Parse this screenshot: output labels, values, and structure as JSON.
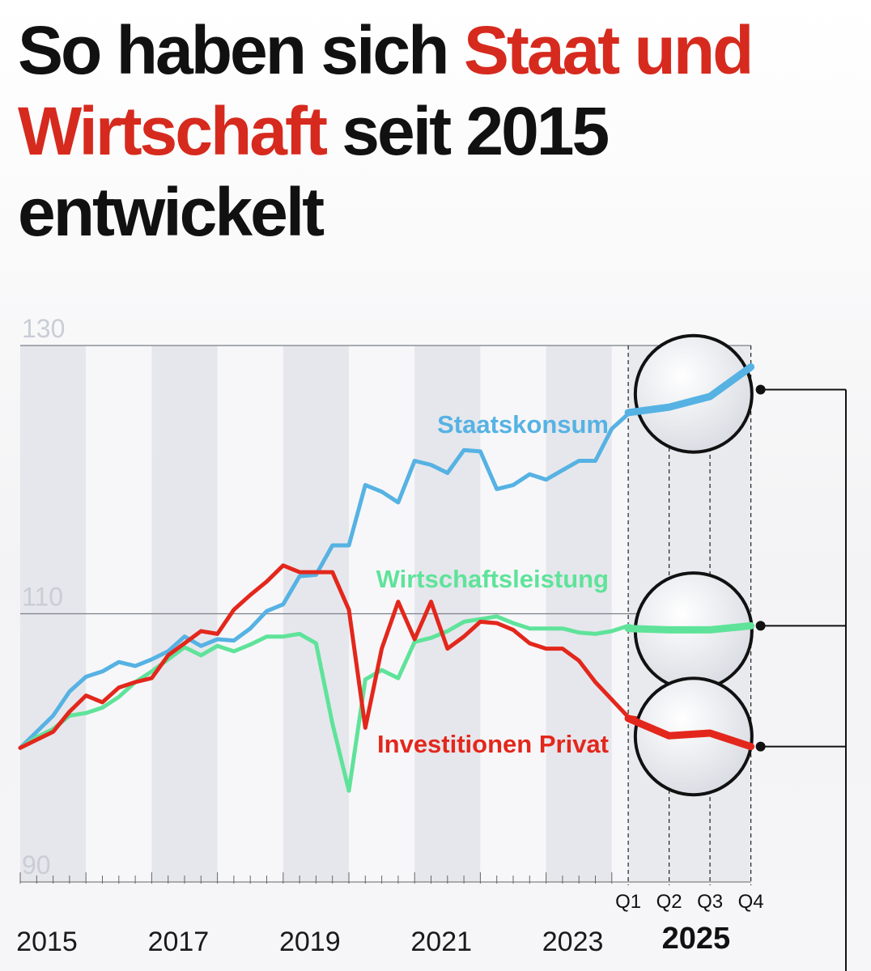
{
  "title": {
    "part1": "So haben sich ",
    "part2": "Staat und Wirtschaft",
    "part3": " seit 2015 entwickelt"
  },
  "colors": {
    "staat": "#56b2e3",
    "wirtschaft": "#5fe39a",
    "invest": "#e3271c",
    "title_accent": "#d62a1e"
  },
  "chart_data": {
    "type": "line",
    "title": "So haben sich Staat und Wirtschaft seit 2015 entwickelt",
    "xlabel": "",
    "ylabel": "",
    "ylim": [
      90,
      130
    ],
    "yticks": [
      130,
      110,
      90
    ],
    "x_quarters": 41,
    "year_labels": [
      {
        "q": 0,
        "label": "2015"
      },
      {
        "q": 8,
        "label": "2017"
      },
      {
        "q": 16,
        "label": "2019"
      },
      {
        "q": 24,
        "label": "2021"
      },
      {
        "q": 32,
        "label": "2023"
      }
    ],
    "highlight": {
      "year": "2025",
      "quarters": [
        "Q1",
        "Q2",
        "Q3",
        "Q4"
      ],
      "start_q": 37
    },
    "series": [
      {
        "name": "Staatskonsum",
        "color_key": "staat",
        "values": [
          100,
          101.2,
          102.4,
          104.2,
          105.3,
          105.7,
          106.4,
          106.1,
          106.6,
          107.2,
          108.3,
          107.6,
          108.1,
          108,
          108.9,
          110.2,
          110.7,
          112.8,
          112.9,
          115.1,
          115.1,
          119.6,
          119.1,
          118.3,
          121.4,
          121.1,
          120.5,
          122.2,
          122.1,
          119.3,
          119.6,
          120.4,
          120,
          120.7,
          121.4,
          121.4,
          123.8,
          124.9,
          125.6,
          124.5,
          125
        ],
        "highlight_values": [
          125,
          125.4,
          126.2,
          128.4
        ]
      },
      {
        "name": "Wirtschaftsleistung",
        "color_key": "wirtschaft",
        "values": [
          100,
          100.8,
          101.4,
          102.4,
          102.6,
          103,
          103.8,
          104.9,
          105.7,
          106.6,
          107.5,
          106.9,
          107.6,
          107.2,
          107.7,
          108.3,
          108.3,
          108.5,
          107.8,
          101.8,
          96.8,
          105.1,
          105.8,
          105.2,
          107.9,
          108.2,
          108.7,
          109.4,
          109.6,
          109.8,
          109.3,
          108.9,
          108.9,
          108.9,
          108.6,
          108.5,
          108.7,
          109.1,
          108.8,
          109,
          108.9
        ],
        "highlight_values": [
          108.9,
          108.8,
          108.8,
          109.1
        ]
      },
      {
        "name": "Investitionen Privat",
        "color_key": "invest",
        "values": [
          100,
          100.6,
          101.2,
          102.7,
          103.9,
          103.4,
          104.5,
          104.9,
          105.2,
          106.9,
          107.8,
          108.7,
          108.5,
          110.3,
          111.4,
          112.4,
          113.6,
          113.1,
          113.1,
          113.1,
          110.3,
          101.5,
          107.4,
          110.9,
          108.1,
          110.9,
          107.4,
          108.3,
          109.4,
          109.3,
          108.8,
          107.8,
          107.4,
          107.4,
          106.5,
          104.9,
          103.6,
          102.3,
          102.1,
          102.3,
          102.2
        ],
        "highlight_values": [
          102.2,
          100.9,
          101.1,
          100.1
        ]
      }
    ]
  }
}
